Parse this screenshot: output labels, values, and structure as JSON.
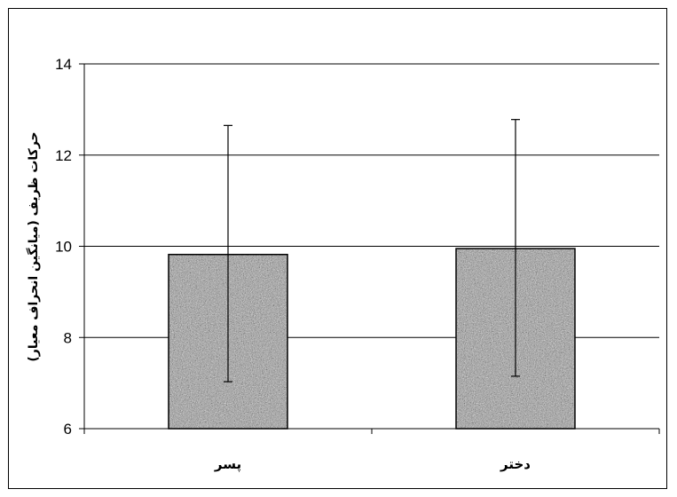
{
  "chart_data": {
    "type": "bar",
    "categories": [
      "پسر",
      "دختر"
    ],
    "values": [
      9.82,
      9.95
    ],
    "error_high": [
      12.65,
      12.78
    ],
    "error_low": [
      7.03,
      7.15
    ],
    "ylabel": "حرکات ظریف (میانگین انحراف معیار)",
    "xlabel": "",
    "ylim": [
      6,
      14
    ],
    "yticks": [
      6,
      8,
      10,
      12,
      14
    ],
    "grid": true,
    "bar_fill": "speckled gray texture",
    "colors": {
      "bar_base": "#9a9a9a",
      "grid": "#000000",
      "frame": "#000000"
    }
  }
}
